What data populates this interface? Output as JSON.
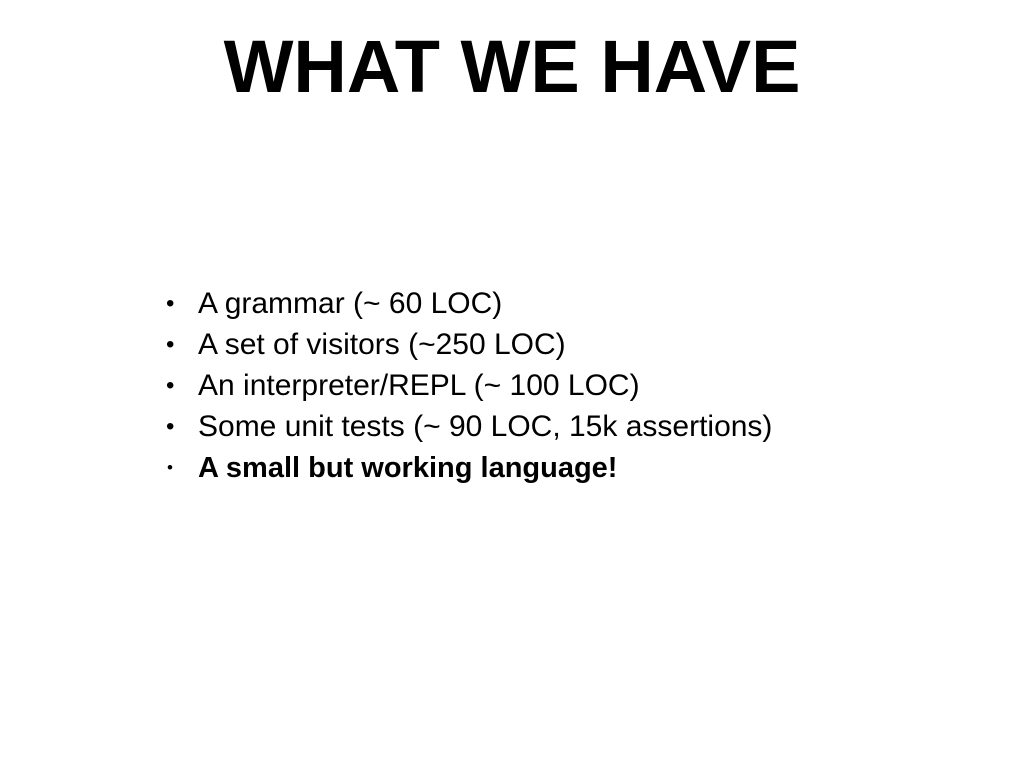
{
  "slide": {
    "title": "WHAT WE HAVE",
    "bullet_glyph": "•",
    "bullets": [
      {
        "text": "A grammar (~ 60 LOC)",
        "bold": false
      },
      {
        "text": "A set of visitors (~250 LOC)",
        "bold": false
      },
      {
        "text": "An interpreter/REPL (~ 100 LOC)",
        "bold": false
      },
      {
        "text": "Some unit tests (~ 90 LOC, 15k assertions)",
        "bold": false
      },
      {
        "text": "A small but working language!",
        "bold": true
      }
    ]
  },
  "colors": {
    "background": "#ffffff",
    "text": "#000000"
  }
}
